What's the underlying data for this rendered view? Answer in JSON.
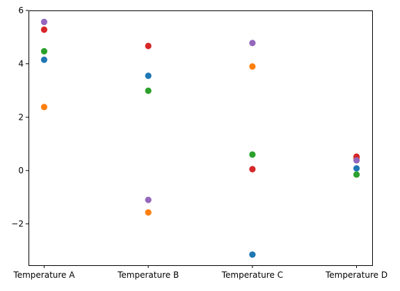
{
  "chart_data": {
    "type": "scatter",
    "categories": [
      "Temperature A",
      "Temperature B",
      "Temperature C",
      "Temperature D"
    ],
    "series": [
      {
        "color": "#1f77b4",
        "values": [
          4.15,
          3.55,
          -3.15,
          0.08
        ]
      },
      {
        "color": "#ff7f0e",
        "values": [
          2.38,
          -1.57,
          3.9,
          0.45
        ]
      },
      {
        "color": "#2ca02c",
        "values": [
          4.47,
          2.99,
          0.6,
          -0.15
        ]
      },
      {
        "color": "#d62728",
        "values": [
          5.28,
          4.67,
          0.05,
          0.52
        ]
      },
      {
        "color": "#9467bd",
        "values": [
          5.57,
          -1.1,
          4.78,
          0.38
        ]
      }
    ],
    "y_ticks": [
      -2,
      0,
      2,
      4,
      6
    ],
    "y_tick_labels": [
      "−2",
      "0",
      "2",
      "4",
      "6"
    ],
    "ylim": [
      -3.55,
      6
    ],
    "grid": false,
    "title": "",
    "xlabel": "",
    "ylabel": ""
  }
}
